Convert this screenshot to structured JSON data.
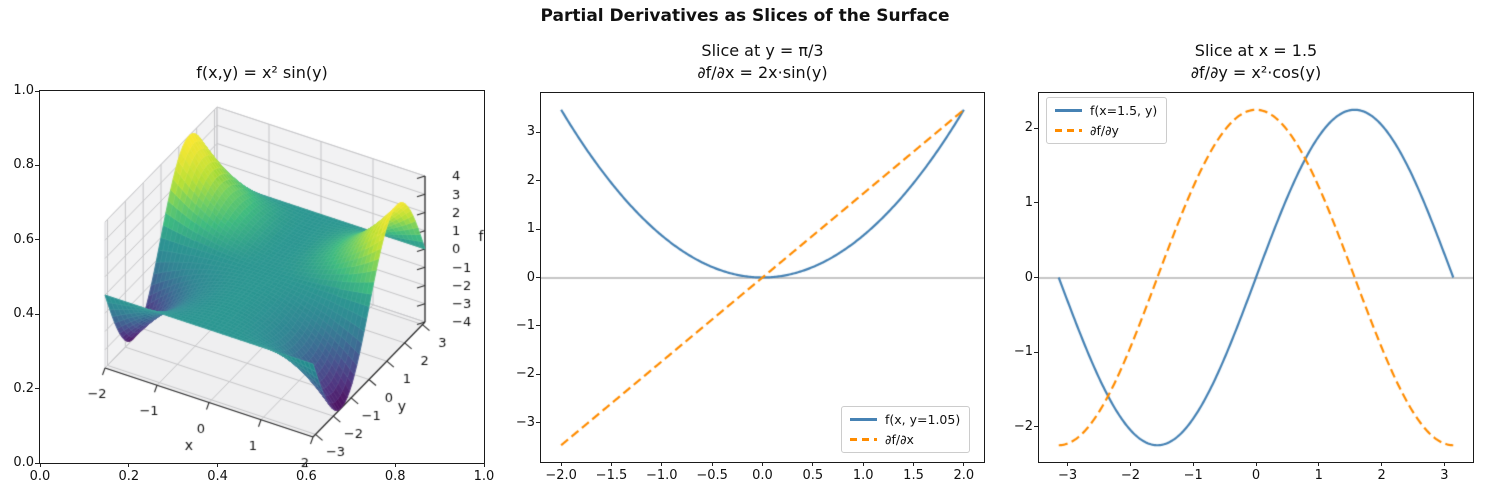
{
  "figure": {
    "suptitle": "Partial Derivatives as Slices of the Surface"
  },
  "colors": {
    "blue": "#4682b4",
    "orange": "#ff8c00",
    "zero_line": "#8a8a8a",
    "pane": "#f2f2f3",
    "pane_bottom": "#efeff0",
    "grid3d": "#c6c6c8",
    "spine": "#1a1a1a",
    "text": "#111111"
  },
  "chart_data": [
    {
      "type": "surface",
      "title": "f(x,y) = x² sin(y)",
      "z_expr": "x*x*Math.sin(y)",
      "x_range": [
        -2,
        2
      ],
      "y_range": [
        -3.14159265,
        3.14159265
      ],
      "z_range": [
        -4,
        4
      ],
      "colormap": "viridis",
      "xlabel": "x",
      "ylabel": "y",
      "zlabel": "f",
      "x_ticks": [
        {
          "v": -2,
          "l": "−2"
        },
        {
          "v": -1,
          "l": "−1"
        },
        {
          "v": 0,
          "l": "0"
        },
        {
          "v": 1,
          "l": "1"
        },
        {
          "v": 2,
          "l": "2"
        }
      ],
      "y_ticks": [
        {
          "v": -3,
          "l": "−3"
        },
        {
          "v": -2,
          "l": "−2"
        },
        {
          "v": -1,
          "l": "−1"
        },
        {
          "v": 0,
          "l": "0"
        },
        {
          "v": 1,
          "l": "1"
        },
        {
          "v": 2,
          "l": "2"
        },
        {
          "v": 3,
          "l": "3"
        }
      ],
      "z_ticks": [
        {
          "v": 4,
          "l": "4"
        },
        {
          "v": 3,
          "l": "3"
        },
        {
          "v": 2,
          "l": "2"
        },
        {
          "v": 1,
          "l": "1"
        },
        {
          "v": 0,
          "l": "0"
        },
        {
          "v": -1,
          "l": "−1"
        },
        {
          "v": -2,
          "l": "−2"
        },
        {
          "v": -3,
          "l": "−3"
        },
        {
          "v": -4,
          "l": "−4"
        }
      ],
      "frame_x_ticks": [
        {
          "v": 0,
          "l": "0.0"
        },
        {
          "v": 0.2,
          "l": "0.2"
        },
        {
          "v": 0.4,
          "l": "0.4"
        },
        {
          "v": 0.6,
          "l": "0.6"
        },
        {
          "v": 0.8,
          "l": "0.8"
        },
        {
          "v": 1,
          "l": "1.0"
        }
      ],
      "frame_y_ticks": [
        {
          "v": 0,
          "l": "0.0"
        },
        {
          "v": 0.2,
          "l": "0.2"
        },
        {
          "v": 0.4,
          "l": "0.4"
        },
        {
          "v": 0.6,
          "l": "0.6"
        },
        {
          "v": 0.8,
          "l": "0.8"
        },
        {
          "v": 1,
          "l": "1.0"
        }
      ]
    },
    {
      "type": "line",
      "title_lines": [
        "Slice at y = π/3",
        "∂f/∂x = 2x·sin(y)"
      ],
      "xlim": [
        -2.2,
        2.2
      ],
      "ylim": [
        -3.81,
        3.81
      ],
      "x_ticks": [
        {
          "v": -2,
          "l": "−2.0"
        },
        {
          "v": -1.5,
          "l": "−1.5"
        },
        {
          "v": -1,
          "l": "−1.0"
        },
        {
          "v": -0.5,
          "l": "−0.5"
        },
        {
          "v": 0,
          "l": "0.0"
        },
        {
          "v": 0.5,
          "l": "0.5"
        },
        {
          "v": 1,
          "l": "1.0"
        },
        {
          "v": 1.5,
          "l": "1.5"
        },
        {
          "v": 2,
          "l": "2.0"
        }
      ],
      "y_ticks": [
        {
          "v": 3,
          "l": "3"
        },
        {
          "v": 2,
          "l": "2"
        },
        {
          "v": 1,
          "l": "1"
        },
        {
          "v": 0,
          "l": "0"
        },
        {
          "v": -1,
          "l": "−1"
        },
        {
          "v": -2,
          "l": "−2"
        },
        {
          "v": -3,
          "l": "−3"
        }
      ],
      "zero_line": 0,
      "legend_loc": "lower right",
      "series": [
        {
          "name": "f(x, y=1.05)",
          "color": "#4682b4",
          "style": "solid",
          "expr": "0.8660254*x*x",
          "x_range": [
            -2,
            2
          ],
          "sample_x": [
            -2,
            -1.5,
            -1,
            -0.5,
            0,
            0.5,
            1,
            1.5,
            2
          ],
          "sample_y": [
            3.464,
            1.949,
            0.866,
            0.217,
            0,
            0.217,
            0.866,
            1.949,
            3.464
          ]
        },
        {
          "name": "∂f/∂x",
          "color": "#ff8c00",
          "style": "dashed",
          "expr": "1.7320508*x",
          "x_range": [
            -2,
            2
          ],
          "sample_x": [
            -2,
            -1,
            0,
            1,
            2
          ],
          "sample_y": [
            -3.464,
            -1.732,
            0,
            1.732,
            3.464
          ]
        }
      ]
    },
    {
      "type": "line",
      "title_lines": [
        "Slice at x = 1.5",
        "∂f/∂y = x²·cos(y)"
      ],
      "xlim": [
        -3.456,
        3.456
      ],
      "ylim": [
        -2.475,
        2.475
      ],
      "x_ticks": [
        {
          "v": -3,
          "l": "−3"
        },
        {
          "v": -2,
          "l": "−2"
        },
        {
          "v": -1,
          "l": "−1"
        },
        {
          "v": 0,
          "l": "0"
        },
        {
          "v": 1,
          "l": "1"
        },
        {
          "v": 2,
          "l": "2"
        },
        {
          "v": 3,
          "l": "3"
        }
      ],
      "y_ticks": [
        {
          "v": 2,
          "l": "2"
        },
        {
          "v": 1,
          "l": "1"
        },
        {
          "v": 0,
          "l": "0"
        },
        {
          "v": -1,
          "l": "−1"
        },
        {
          "v": -2,
          "l": "−2"
        }
      ],
      "zero_line": 0,
      "legend_loc": "upper left",
      "series": [
        {
          "name": "f(x=1.5, y)",
          "color": "#4682b4",
          "style": "solid",
          "expr": "2.25*Math.sin(x)",
          "x_range": [
            -3.14159265,
            3.14159265
          ],
          "sample_x": [
            -3.142,
            -2.356,
            -1.571,
            -0.785,
            0,
            0.785,
            1.571,
            2.356,
            3.142
          ],
          "sample_y": [
            0,
            -1.591,
            -2.25,
            -1.591,
            0,
            1.591,
            2.25,
            1.591,
            0
          ]
        },
        {
          "name": "∂f/∂y",
          "color": "#ff8c00",
          "style": "dashed",
          "expr": "2.25*Math.cos(x)",
          "x_range": [
            -3.14159265,
            3.14159265
          ],
          "sample_x": [
            -3.142,
            -2.356,
            -1.571,
            -0.785,
            0,
            0.785,
            1.571,
            2.356,
            3.142
          ],
          "sample_y": [
            -2.25,
            -1.591,
            0,
            1.591,
            2.25,
            1.591,
            0,
            -1.591,
            -2.25
          ]
        }
      ]
    }
  ]
}
